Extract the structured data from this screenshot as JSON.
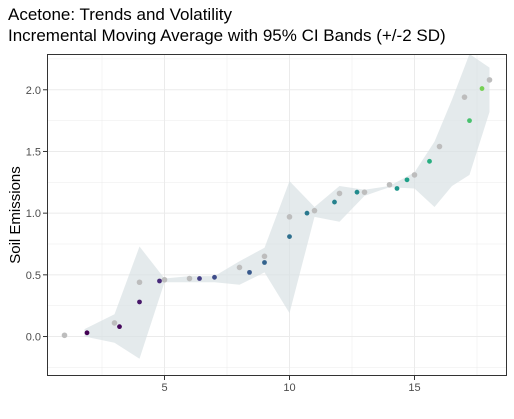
{
  "chart_data": {
    "type": "scatter",
    "title": "Acetone: Trends and Volatility",
    "subtitle": "Incremental Moving Average with 95% CI Bands (+/-2 SD)",
    "xlabel": "",
    "ylabel": "Soil Emissions",
    "xlim": [
      0.3,
      18.7
    ],
    "ylim": [
      -0.32,
      2.29
    ],
    "x_ticks": [
      5,
      10,
      15
    ],
    "y_ticks": [
      0.0,
      0.5,
      1.0,
      1.5,
      2.0
    ],
    "x_tick_labels": [
      "5",
      "10",
      "15"
    ],
    "y_tick_labels": [
      "0.0",
      "0.5",
      "1.0",
      "1.5",
      "2.0"
    ],
    "grid": true,
    "legend": "none",
    "colors": {
      "band": "#d9e1e4",
      "moving_average_points": "#bdbdbd",
      "observed_scale": [
        "#440154",
        "#3b528b",
        "#21908d",
        "#5dc962",
        "#8fd744"
      ]
    },
    "ci_band": {
      "x": [
        1.8,
        3.0,
        4.0,
        5.0,
        6.0,
        7.0,
        8.0,
        9.0,
        10.0,
        11.0,
        12.0,
        13.0,
        14.0,
        15.0,
        15.8,
        16.5,
        17.2,
        18.0
      ],
      "upper": [
        0.06,
        0.18,
        0.73,
        0.47,
        0.49,
        0.49,
        0.61,
        0.72,
        1.26,
        1.05,
        1.22,
        1.19,
        1.22,
        1.33,
        1.58,
        1.92,
        2.29,
        2.18
      ],
      "lower": [
        0.0,
        -0.05,
        -0.18,
        0.44,
        0.44,
        0.44,
        0.42,
        0.52,
        0.19,
        0.97,
        0.93,
        1.14,
        1.21,
        1.2,
        1.05,
        1.22,
        1.31,
        1.82
      ]
    },
    "series": [
      {
        "points": [
          {
            "x": 1.0,
            "y": 0.01
          },
          {
            "x": 3.0,
            "y": 0.11
          },
          {
            "x": 4.0,
            "y": 0.44
          },
          {
            "x": 5.0,
            "y": 0.46
          },
          {
            "x": 6.0,
            "y": 0.47
          },
          {
            "x": 8.0,
            "y": 0.56
          },
          {
            "x": 9.0,
            "y": 0.65
          },
          {
            "x": 10.0,
            "y": 0.97
          },
          {
            "x": 11.0,
            "y": 1.02
          },
          {
            "x": 12.0,
            "y": 1.16
          },
          {
            "x": 13.0,
            "y": 1.17
          },
          {
            "x": 14.0,
            "y": 1.23
          },
          {
            "x": 15.0,
            "y": 1.31
          },
          {
            "x": 16.0,
            "y": 1.54
          },
          {
            "x": 17.0,
            "y": 1.94
          },
          {
            "x": 18.0,
            "y": 2.08
          }
        ]
      },
      {
        "points": [
          {
            "x": 1.9,
            "y": 0.03,
            "color": "#440154"
          },
          {
            "x": 3.2,
            "y": 0.08,
            "color": "#46085c"
          },
          {
            "x": 4.0,
            "y": 0.28,
            "color": "#48186a"
          },
          {
            "x": 4.8,
            "y": 0.45,
            "color": "#472a7a"
          },
          {
            "x": 6.4,
            "y": 0.47,
            "color": "#433e85"
          },
          {
            "x": 7.0,
            "y": 0.48,
            "color": "#3e4c8a"
          },
          {
            "x": 8.4,
            "y": 0.52,
            "color": "#38598c"
          },
          {
            "x": 9.0,
            "y": 0.6,
            "color": "#33638d"
          },
          {
            "x": 10.0,
            "y": 0.81,
            "color": "#2e6f8e"
          },
          {
            "x": 10.7,
            "y": 1.0,
            "color": "#2a788e"
          },
          {
            "x": 11.8,
            "y": 1.09,
            "color": "#26828e"
          },
          {
            "x": 12.7,
            "y": 1.17,
            "color": "#228b8d"
          },
          {
            "x": 14.3,
            "y": 1.2,
            "color": "#1f968b"
          },
          {
            "x": 14.7,
            "y": 1.27,
            "color": "#1fa088"
          },
          {
            "x": 15.6,
            "y": 1.42,
            "color": "#28ae80"
          },
          {
            "x": 17.2,
            "y": 1.75,
            "color": "#48c16e"
          },
          {
            "x": 17.7,
            "y": 2.01,
            "color": "#75d054"
          }
        ]
      }
    ]
  }
}
